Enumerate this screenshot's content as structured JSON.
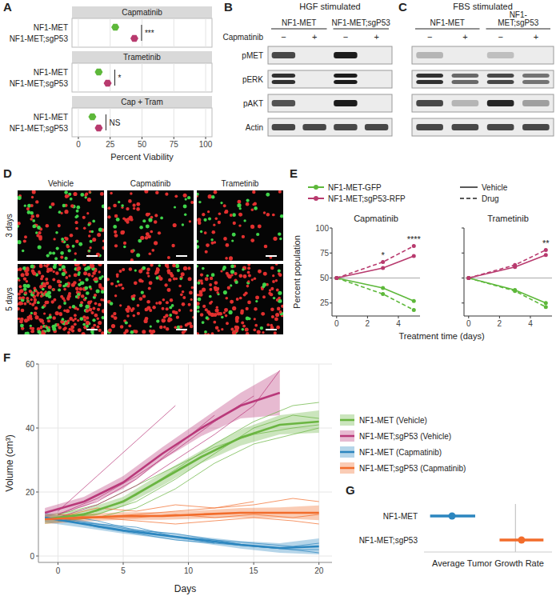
{
  "panel_labels": [
    "A",
    "B",
    "C",
    "D",
    "E",
    "F",
    "G"
  ],
  "chart_data": [
    {
      "type": "dot",
      "orientation": "horizontal",
      "xlabel": "Percent Viability",
      "categories": [
        "NF1-MET",
        "NF1-MET;sgP53"
      ],
      "colors": [
        "#5db83a",
        "#b83a6e"
      ],
      "marker": "hexagon",
      "xlim": [
        -5,
        105
      ],
      "xticks": [
        0,
        25,
        50,
        75,
        100
      ],
      "grid": true,
      "facets": [
        {
          "title": "Capmatinib",
          "values": [
            29,
            44
          ],
          "annotation": "***"
        },
        {
          "title": "Trametinib",
          "values": [
            16,
            23
          ],
          "annotation": "*"
        },
        {
          "title": "Cap + Tram",
          "values": [
            11,
            16
          ],
          "annotation": "NS"
        }
      ]
    },
    {
      "type": "line",
      "title": "Capmatinib",
      "xlabel": "Treatment time (days)",
      "ylabel": "Percent population",
      "xlim": [
        -0.3,
        5.4
      ],
      "xticks": [
        0,
        2,
        4
      ],
      "ylim": [
        12,
        100
      ],
      "yticks": [
        25,
        50,
        75,
        100
      ],
      "hline": 50,
      "marker": "circle",
      "series": [
        {
          "name": "NF1-MET-GFP",
          "treatment": "Vehicle",
          "line_style": "solid",
          "color": "#5db83a",
          "x": [
            0,
            3,
            5
          ],
          "values": [
            50,
            40,
            27
          ]
        },
        {
          "name": "NF1-MET-GFP",
          "treatment": "Drug",
          "line_style": "dashed",
          "color": "#5db83a",
          "x": [
            0,
            3,
            5
          ],
          "values": [
            50,
            34,
            18
          ]
        },
        {
          "name": "NF1-MET;sgP53-RFP",
          "treatment": "Vehicle",
          "line_style": "solid",
          "color": "#b83a6e",
          "x": [
            0,
            3,
            5
          ],
          "values": [
            50,
            60,
            72
          ]
        },
        {
          "name": "NF1-MET;sgP53-RFP",
          "treatment": "Drug",
          "line_style": "dashed",
          "color": "#b83a6e",
          "x": [
            0,
            3,
            5
          ],
          "values": [
            50,
            66,
            82
          ]
        }
      ],
      "annotations": [
        {
          "x": 3,
          "text": "*"
        },
        {
          "x": 5,
          "text": "****"
        }
      ]
    },
    {
      "type": "line",
      "title": "Trametinib",
      "tick_labels": "x",
      "xlim": [
        -0.3,
        5.4
      ],
      "xticks": [
        0,
        2,
        4
      ],
      "ylim": [
        12,
        100
      ],
      "yticks": [
        25,
        50,
        75,
        100
      ],
      "hline": 50,
      "marker": "circle",
      "series": [
        {
          "name": "NF1-MET-GFP",
          "treatment": "Vehicle",
          "line_style": "solid",
          "color": "#5db83a",
          "x": [
            0,
            3,
            5
          ],
          "values": [
            50,
            38,
            25
          ]
        },
        {
          "name": "NF1-MET-GFP",
          "treatment": "Drug",
          "line_style": "dashed",
          "color": "#5db83a",
          "x": [
            0,
            3,
            5
          ],
          "values": [
            50,
            37,
            21
          ]
        },
        {
          "name": "NF1-MET;sgP53-RFP",
          "treatment": "Vehicle",
          "line_style": "solid",
          "color": "#b83a6e",
          "x": [
            0,
            3,
            5
          ],
          "values": [
            50,
            61,
            73
          ]
        },
        {
          "name": "NF1-MET;sgP53-RFP",
          "treatment": "Drug",
          "line_style": "dashed",
          "color": "#b83a6e",
          "x": [
            0,
            3,
            5
          ],
          "values": [
            50,
            63,
            78
          ]
        }
      ],
      "annotations": [
        {
          "x": 5,
          "text": "**"
        }
      ]
    },
    {
      "type": "line",
      "xlabel": "Days",
      "ylabel": "Volume (cm³)",
      "xlim": [
        -1.5,
        21
      ],
      "xticks": [
        0,
        5,
        10,
        15,
        20
      ],
      "ylim": [
        -2,
        60
      ],
      "yticks": [
        0,
        20,
        40,
        60
      ],
      "grid": true,
      "legend": "right",
      "series": [
        {
          "name": "NF1-MET (Vehicle)",
          "color": "#6ab541",
          "x": [
            -1,
            2,
            5,
            8,
            11,
            14,
            17,
            20
          ],
          "values": [
            11.5,
            13,
            17,
            24,
            31,
            37,
            41,
            42
          ],
          "lower": [
            10,
            11.5,
            15.5,
            22,
            29,
            34.5,
            38,
            38.5
          ],
          "upper": [
            13,
            14.5,
            18.5,
            26,
            33,
            39.5,
            44,
            45.5
          ],
          "mice": [
            {
              "x": [
                0,
                3,
                6,
                9,
                12,
                15,
                18,
                20
              ],
              "values": [
                13,
                16,
                22,
                28,
                34,
                38,
                40,
                41
              ]
            },
            {
              "x": [
                0,
                3,
                6,
                9,
                12,
                15,
                18,
                20
              ],
              "values": [
                12,
                13,
                17,
                24,
                32,
                40,
                44,
                43
              ]
            },
            {
              "x": [
                0,
                3,
                6,
                9,
                12,
                15,
                18,
                20
              ],
              "values": [
                11,
                12,
                15,
                21,
                29,
                35,
                38,
                40
              ]
            },
            {
              "x": [
                0,
                3,
                6,
                9,
                12,
                15,
                18,
                20
              ],
              "values": [
                12,
                14,
                19,
                27,
                35,
                42,
                47,
                48
              ]
            }
          ]
        },
        {
          "name": "NF1-MET;sgP53 (Vehicle)",
          "color": "#b9397a",
          "x": [
            -1,
            2,
            5,
            8,
            11,
            14,
            17
          ],
          "values": [
            13.5,
            17,
            23,
            32,
            40,
            47,
            51
          ],
          "lower": [
            12,
            15.5,
            21,
            30,
            37.5,
            43,
            44
          ],
          "upper": [
            15,
            18.5,
            25,
            34,
            42.5,
            51,
            58
          ],
          "mice": [
            {
              "x": [
                0,
                3,
                6,
                9
              ],
              "values": [
                14,
                25,
                36,
                47
              ]
            },
            {
              "x": [
                0,
                3,
                6,
                9,
                12,
                15
              ],
              "values": [
                13,
                18,
                25,
                33,
                42,
                50
              ]
            },
            {
              "x": [
                0,
                3,
                6,
                9,
                12,
                15,
                17
              ],
              "values": [
                12,
                16,
                22,
                30,
                38,
                47,
                58
              ]
            },
            {
              "x": [
                0,
                3,
                6,
                9,
                12
              ],
              "values": [
                13,
                17,
                24,
                34,
                44
              ]
            }
          ]
        },
        {
          "name": "NF1-MET (Capmatinib)",
          "color": "#2c86bf",
          "x": [
            -1,
            2,
            5,
            8,
            11,
            14,
            17,
            20
          ],
          "values": [
            12,
            10,
            8,
            6.5,
            5,
            3.5,
            2.5,
            3
          ],
          "lower": [
            10.5,
            8.8,
            7,
            5.5,
            4,
            2.3,
            1,
            0.5
          ],
          "upper": [
            13.5,
            11.2,
            9,
            7.5,
            6,
            4.7,
            4,
            5.5
          ],
          "mice": [
            {
              "x": [
                0,
                3,
                6,
                9,
                12,
                15,
                18,
                20
              ],
              "values": [
                12,
                9,
                7,
                5,
                4,
                3,
                2,
                1
              ]
            },
            {
              "x": [
                0,
                3,
                6,
                9,
                12,
                15,
                18,
                20
              ],
              "values": [
                13,
                11,
                8,
                7,
                5,
                4,
                3,
                4
              ]
            },
            {
              "x": [
                0,
                3,
                6,
                9,
                12,
                15,
                18,
                20
              ],
              "values": [
                11,
                10,
                8,
                6,
                5,
                3,
                2,
                2
              ]
            },
            {
              "x": [
                0,
                3,
                6,
                9,
                12
              ],
              "values": [
                12,
                10,
                9,
                6,
                4
              ]
            }
          ]
        },
        {
          "name": "NF1-MET;sgP53 (Capmatinib)",
          "color": "#f26c2b",
          "x": [
            -1,
            2,
            5,
            8,
            11,
            14,
            17,
            20
          ],
          "values": [
            11.5,
            12,
            12.5,
            12.5,
            13,
            13.5,
            13.5,
            13.5
          ],
          "lower": [
            10,
            10.8,
            11.3,
            11.3,
            11.7,
            12,
            11.8,
            11.2
          ],
          "upper": [
            13,
            13.2,
            13.7,
            13.7,
            14.3,
            15,
            15.2,
            15.8
          ],
          "mice": [
            {
              "x": [
                0,
                3,
                6,
                9,
                12,
                15,
                18,
                20
              ],
              "values": [
                12,
                12,
                13,
                14,
                15,
                16,
                18,
                17
              ]
            },
            {
              "x": [
                0,
                3,
                6,
                9,
                12,
                15,
                18,
                20
              ],
              "values": [
                11,
                12,
                12,
                13,
                12,
                13,
                12,
                13
              ]
            },
            {
              "x": [
                0,
                3,
                6,
                9,
                12,
                15,
                18,
                20
              ],
              "values": [
                13,
                12,
                11,
                10,
                11,
                12,
                11,
                10
              ]
            },
            {
              "x": [
                0,
                3,
                6,
                9,
                12,
                15
              ],
              "values": [
                12,
                15,
                14,
                16,
                15,
                17
              ]
            }
          ]
        }
      ]
    },
    {
      "type": "forest",
      "orientation": "horizontal",
      "xlabel": "Average Tumor Growth Rate",
      "categories": [
        "NF1-MET",
        "NF1-MET;sgP53"
      ],
      "values": [
        -0.52,
        0.05
      ],
      "lower": [
        -0.7,
        -0.13
      ],
      "upper": [
        -0.33,
        0.23
      ],
      "colors": [
        "#2c86bf",
        "#f26c2b"
      ],
      "xlim": [
        -0.75,
        0.3
      ],
      "xticks": [
        0
      ],
      "grid": true,
      "tick_labels": false,
      "marker": "circle"
    }
  ],
  "blots": [
    {
      "title": "HGF stimulated",
      "groups": [
        "NF1-MET",
        "NF1-MET;sgP53"
      ],
      "treatment_label": "Capmatinib",
      "lanes": [
        "−",
        "+",
        "−",
        "+"
      ],
      "rows": [
        {
          "label": "pMET",
          "bands": 1,
          "intensity": [
            0.75,
            0,
            0.95,
            0
          ]
        },
        {
          "label": "pERK",
          "bands": 2,
          "intensity": [
            0.85,
            0,
            0.95,
            0
          ]
        },
        {
          "label": "pAKT",
          "bands": 1,
          "intensity": [
            0.7,
            0,
            0.95,
            0
          ]
        },
        {
          "label": "Actin",
          "bands": 1,
          "intensity": [
            0.75,
            0.75,
            0.75,
            0.75
          ]
        }
      ]
    },
    {
      "title": "FBS stimulated",
      "groups": [
        "NF1-MET",
        "NF1-\nMET;sgP53"
      ],
      "lanes": [
        "−",
        "+",
        "−",
        "+"
      ],
      "rows": [
        {
          "bands": 1,
          "intensity": [
            0.25,
            0,
            0.2,
            0
          ]
        },
        {
          "bands": 2,
          "intensity": [
            0.85,
            0.6,
            0.75,
            0.55
          ]
        },
        {
          "bands": 1,
          "intensity": [
            0.75,
            0.25,
            0.9,
            0.35
          ]
        },
        {
          "bands": 1,
          "intensity": [
            0.75,
            0.75,
            0.75,
            0.75
          ]
        }
      ]
    }
  ],
  "micrographs": {
    "columns": [
      "Vehicle",
      "Capmatinib",
      "Trametinib"
    ],
    "rows": [
      "3 days",
      "5 days"
    ]
  }
}
